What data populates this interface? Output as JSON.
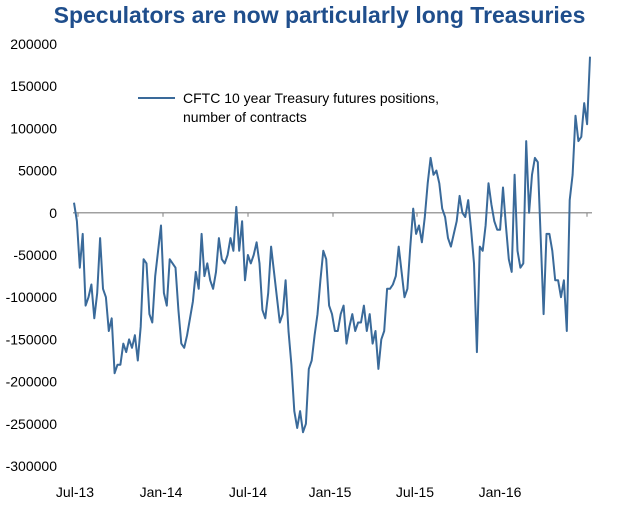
{
  "chart_data": {
    "type": "line",
    "title": "Speculators are now particularly long Treasuries",
    "xlabel": "",
    "ylabel": "",
    "ylim": [
      -300000,
      200000
    ],
    "y_ticks": [
      "200000",
      "150000",
      "100000",
      "50000",
      "0",
      "-50000",
      "-100000",
      "-150000",
      "-200000",
      "-250000",
      "-300000"
    ],
    "x_ticks": [
      "Jul-13",
      "Jan-14",
      "Jul-14",
      "Jan-15",
      "Jul-15",
      "Jan-16"
    ],
    "legend": {
      "placement": "top-left",
      "lines": [
        "CFTC 10 year Treasury futures positions,",
        "number of contracts"
      ]
    },
    "series": [
      {
        "name": "CFTC 10 year Treasury futures positions, number of contracts",
        "color": "#3a6a9a",
        "values": [
          12000,
          -10000,
          -65000,
          -25000,
          -110000,
          -100000,
          -85000,
          -125000,
          -95000,
          -30000,
          -90000,
          -100000,
          -140000,
          -125000,
          -190000,
          -180000,
          -180000,
          -155000,
          -165000,
          -150000,
          -160000,
          -145000,
          -175000,
          -135000,
          -55000,
          -60000,
          -120000,
          -130000,
          -75000,
          -45000,
          -15000,
          -95000,
          -110000,
          -55000,
          -60000,
          -65000,
          -115000,
          -155000,
          -160000,
          -145000,
          -125000,
          -105000,
          -70000,
          -90000,
          -25000,
          -75000,
          -60000,
          -80000,
          -90000,
          -70000,
          -30000,
          -55000,
          -60000,
          -50000,
          -30000,
          -45000,
          7000,
          -45000,
          -10000,
          -80000,
          -50000,
          -60000,
          -50000,
          -35000,
          -60000,
          -115000,
          -125000,
          -95000,
          -40000,
          -70000,
          -100000,
          -130000,
          -120000,
          -80000,
          -140000,
          -180000,
          -235000,
          -255000,
          -235000,
          -260000,
          -250000,
          -185000,
          -175000,
          -145000,
          -120000,
          -80000,
          -45000,
          -55000,
          -110000,
          -120000,
          -140000,
          -140000,
          -120000,
          -110000,
          -155000,
          -135000,
          -120000,
          -140000,
          -130000,
          -130000,
          -110000,
          -140000,
          -120000,
          -155000,
          -140000,
          -185000,
          -150000,
          -140000,
          -90000,
          -90000,
          -85000,
          -75000,
          -40000,
          -70000,
          -100000,
          -90000,
          -40000,
          5000,
          -25000,
          -15000,
          -35000,
          -5000,
          35000,
          65000,
          45000,
          50000,
          35000,
          5000,
          -5000,
          -30000,
          -40000,
          -25000,
          -10000,
          20000,
          0,
          -5000,
          15000,
          -20000,
          -60000,
          -165000,
          -40000,
          -45000,
          -15000,
          35000,
          10000,
          -10000,
          -20000,
          -20000,
          30000,
          -15000,
          -55000,
          -70000,
          45000,
          -45000,
          -65000,
          -60000,
          85000,
          0,
          45000,
          65000,
          60000,
          -30000,
          -120000,
          -25000,
          -25000,
          -45000,
          -80000,
          -80000,
          -100000,
          -80000,
          -140000,
          15000,
          45000,
          115000,
          85000,
          90000,
          130000,
          105000,
          185000
        ]
      }
    ]
  }
}
